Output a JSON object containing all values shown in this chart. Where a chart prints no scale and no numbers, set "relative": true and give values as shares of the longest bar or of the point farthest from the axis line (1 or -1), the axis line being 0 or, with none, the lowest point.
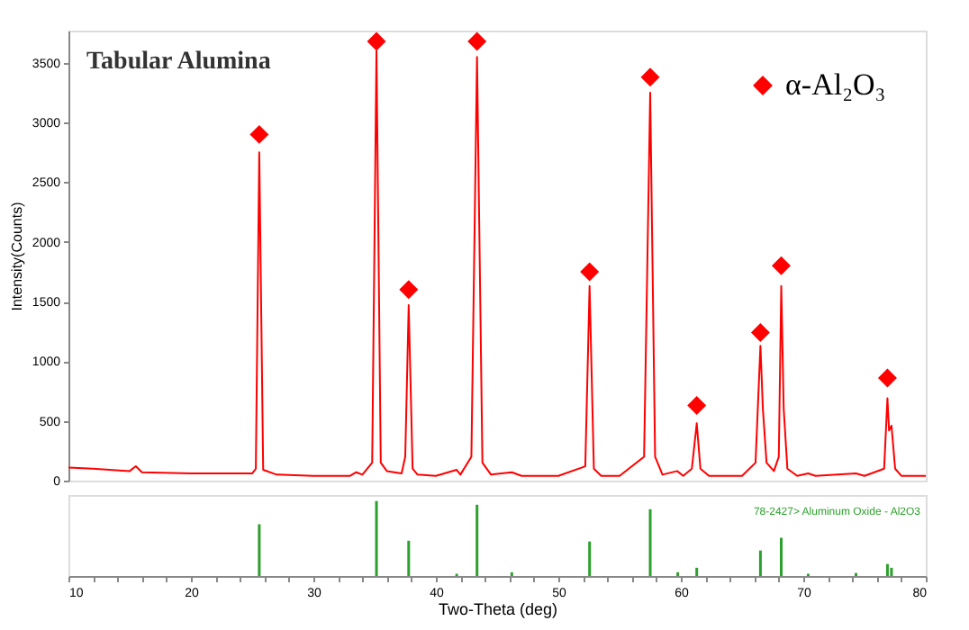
{
  "chart_data": [
    {
      "type": "line",
      "title": "Tabular Alumina",
      "ylabel": "Intensity(Counts)",
      "xlim": [
        10,
        80
      ],
      "ylim": [
        0,
        3770
      ],
      "yticks": [
        0,
        500,
        1000,
        1500,
        2000,
        2500,
        3000,
        3500
      ],
      "tick_labels": "y",
      "grid": false,
      "legend": "top right",
      "series": [
        {
          "type": "line",
          "color": "#ff0000",
          "line_style": "solid",
          "x": [
            10,
            12,
            15,
            15.5,
            16,
            20,
            25,
            25.3,
            25.58,
            25.9,
            27,
            30,
            33,
            33.5,
            34,
            34.8,
            35.15,
            35.5,
            36,
            37.2,
            37.5,
            37.78,
            38.1,
            38.5,
            40,
            41.7,
            42,
            42.9,
            43.36,
            43.8,
            44.5,
            46.2,
            47,
            50,
            52.2,
            52.55,
            52.9,
            53.5,
            55,
            57,
            57.5,
            57.9,
            58.5,
            59.7,
            60.2,
            60.9,
            61.3,
            61.6,
            62.3,
            65,
            66.1,
            66.5,
            66.7,
            67,
            67.6,
            68.0,
            68.2,
            68.4,
            68.7,
            69.5,
            70.4,
            71,
            74.3,
            75,
            76.6,
            76.87,
            77.0,
            77.2,
            77.5,
            78,
            80
          ],
          "values": [
            110,
            100,
            80,
            120,
            70,
            60,
            60,
            100,
            2750,
            90,
            50,
            40,
            40,
            70,
            50,
            150,
            3600,
            150,
            80,
            60,
            200,
            1470,
            100,
            50,
            40,
            90,
            50,
            200,
            3550,
            150,
            50,
            70,
            40,
            40,
            120,
            1630,
            100,
            40,
            40,
            200,
            3250,
            200,
            50,
            80,
            40,
            100,
            480,
            100,
            40,
            40,
            150,
            1130,
            600,
            150,
            80,
            200,
            1630,
            600,
            100,
            40,
            60,
            40,
            60,
            40,
            100,
            690,
            420,
            460,
            100,
            40,
            40
          ]
        },
        {
          "type": "scatter",
          "name": "α-Al₂O₃",
          "color": "#ff0000",
          "marker": "diamond",
          "x": [
            25.58,
            35.15,
            37.78,
            43.36,
            52.55,
            57.5,
            61.3,
            66.5,
            68.2,
            76.87
          ],
          "values": [
            2900,
            3680,
            1600,
            3680,
            1750,
            3380,
            630,
            1240,
            1800,
            860
          ]
        }
      ]
    },
    {
      "type": "bar",
      "relative": true,
      "xlabel": "Two-Theta (deg)",
      "xlim": [
        10,
        80
      ],
      "tick_labels": "x",
      "grid": false,
      "color": "#2ca02c",
      "xticks": [
        10,
        {
          "value": 12,
          "label": null
        },
        {
          "value": 14,
          "label": null
        },
        {
          "value": 16,
          "label": null
        },
        {
          "value": 18,
          "label": null
        },
        20,
        {
          "value": 22,
          "label": null
        },
        {
          "value": 24,
          "label": null
        },
        {
          "value": 26,
          "label": null
        },
        {
          "value": 28,
          "label": null
        },
        30,
        {
          "value": 32,
          "label": null
        },
        {
          "value": 34,
          "label": null
        },
        {
          "value": 36,
          "label": null
        },
        {
          "value": 38,
          "label": null
        },
        40,
        {
          "value": 42,
          "label": null
        },
        {
          "value": 44,
          "label": null
        },
        {
          "value": 46,
          "label": null
        },
        {
          "value": 48,
          "label": null
        },
        50,
        {
          "value": 52,
          "label": null
        },
        {
          "value": 54,
          "label": null
        },
        {
          "value": 56,
          "label": null
        },
        {
          "value": 58,
          "label": null
        },
        60,
        {
          "value": 62,
          "label": null
        },
        {
          "value": 64,
          "label": null
        },
        {
          "value": 66,
          "label": null
        },
        {
          "value": 68,
          "label": null
        },
        70,
        {
          "value": 72,
          "label": null
        },
        {
          "value": 74,
          "label": null
        },
        {
          "value": 76,
          "label": null
        },
        {
          "value": 78,
          "label": null
        },
        80
      ],
      "x": [
        25.58,
        35.15,
        37.78,
        41.7,
        43.36,
        46.2,
        52.55,
        57.5,
        59.75,
        61.3,
        66.5,
        68.2,
        70.4,
        74.3,
        76.87,
        77.2
      ],
      "values": [
        0.69,
        1,
        0.47,
        0.03,
        0.95,
        0.05,
        0.46,
        0.89,
        0.05,
        0.11,
        0.34,
        0.51,
        0.03,
        0.04,
        0.16,
        0.11
      ],
      "annotations": [
        "78-2427> Aluminum Oxide - Al2O3"
      ]
    }
  ]
}
